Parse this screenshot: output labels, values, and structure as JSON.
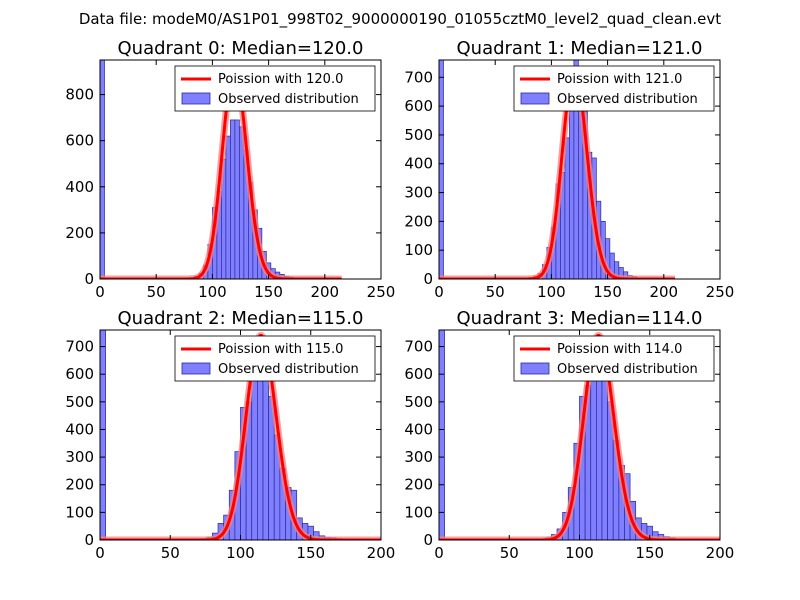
{
  "figure": {
    "suptitle": "Data file: modeM0/AS1P01_998T02_9000000190_01055cztM0_level2_quad_clean.evt",
    "colors": {
      "bars": "#7f7fff",
      "bar_edge": "#2a2a9a",
      "line": "#ff0000",
      "line_halo": "#ff8080"
    }
  },
  "chart_data": [
    {
      "type": "bar",
      "title": "Quadrant 0: Median=120.0",
      "xlim": [
        0,
        250
      ],
      "ylim": [
        0,
        950
      ],
      "xticks": [
        0,
        50,
        100,
        150,
        200,
        250
      ],
      "yticks": [
        0,
        200,
        400,
        600,
        800
      ],
      "legend": {
        "position": "top-right",
        "entries": [
          "Poission with 120.0",
          "Observed distribution"
        ]
      },
      "series": [
        {
          "name": "Observed distribution",
          "kind": "hist",
          "bin_width": 4,
          "bins": [
            [
              0,
              950
            ],
            [
              84,
              12
            ],
            [
              88,
              25
            ],
            [
              92,
              60
            ],
            [
              96,
              150
            ],
            [
              100,
              310
            ],
            [
              104,
              380
            ],
            [
              108,
              520
            ],
            [
              112,
              620
            ],
            [
              116,
              690
            ],
            [
              120,
              690
            ],
            [
              124,
              660
            ],
            [
              128,
              560
            ],
            [
              132,
              420
            ],
            [
              136,
              300
            ],
            [
              140,
              220
            ],
            [
              144,
              120
            ],
            [
              148,
              70
            ],
            [
              152,
              45
            ],
            [
              156,
              30
            ],
            [
              160,
              20
            ],
            [
              164,
              12
            ],
            [
              168,
              8
            ],
            [
              172,
              5
            ]
          ]
        },
        {
          "name": "Poission with 120.0",
          "kind": "poisson",
          "lambda": 120.0,
          "x_range": [
            0,
            215
          ],
          "peak": 910
        }
      ]
    },
    {
      "type": "bar",
      "title": "Quadrant 1: Median=121.0",
      "xlim": [
        0,
        250
      ],
      "ylim": [
        0,
        760
      ],
      "xticks": [
        0,
        50,
        100,
        150,
        200,
        250
      ],
      "yticks": [
        0,
        100,
        200,
        300,
        400,
        500,
        600,
        700
      ],
      "legend": {
        "position": "top-right",
        "entries": [
          "Poission with 121.0",
          "Observed distribution"
        ]
      },
      "series": [
        {
          "name": "Observed distribution",
          "kind": "hist",
          "bin_width": 4,
          "bins": [
            [
              0,
              760
            ],
            [
              80,
              5
            ],
            [
              84,
              10
            ],
            [
              88,
              20
            ],
            [
              92,
              50
            ],
            [
              96,
              110
            ],
            [
              100,
              180
            ],
            [
              104,
              330
            ],
            [
              108,
              370
            ],
            [
              112,
              490
            ],
            [
              116,
              700
            ],
            [
              120,
              760
            ],
            [
              124,
              690
            ],
            [
              128,
              580
            ],
            [
              132,
              440
            ],
            [
              136,
              420
            ],
            [
              140,
              270
            ],
            [
              144,
              200
            ],
            [
              148,
              140
            ],
            [
              152,
              90
            ],
            [
              156,
              60
            ],
            [
              160,
              40
            ],
            [
              164,
              25
            ],
            [
              168,
              12
            ],
            [
              172,
              8
            ]
          ]
        },
        {
          "name": "Poission with 121.0",
          "kind": "poisson",
          "lambda": 121.0,
          "x_range": [
            0,
            210
          ],
          "peak": 725
        }
      ]
    },
    {
      "type": "bar",
      "title": "Quadrant 2: Median=115.0",
      "xlim": [
        0,
        200
      ],
      "ylim": [
        0,
        760
      ],
      "xticks": [
        0,
        50,
        100,
        150,
        200
      ],
      "yticks": [
        0,
        100,
        200,
        300,
        400,
        500,
        600,
        700
      ],
      "legend": {
        "position": "top-right",
        "entries": [
          "Poission with 115.0",
          "Observed distribution"
        ]
      },
      "series": [
        {
          "name": "Observed distribution",
          "kind": "hist",
          "bin_width": 4,
          "bins": [
            [
              0,
              760
            ],
            [
              72,
              5
            ],
            [
              76,
              10
            ],
            [
              80,
              25
            ],
            [
              84,
              60
            ],
            [
              88,
              90
            ],
            [
              92,
              180
            ],
            [
              96,
              320
            ],
            [
              100,
              480
            ],
            [
              104,
              500
            ],
            [
              108,
              630
            ],
            [
              112,
              700
            ],
            [
              116,
              600
            ],
            [
              120,
              520
            ],
            [
              124,
              380
            ],
            [
              128,
              260
            ],
            [
              132,
              190
            ],
            [
              136,
              180
            ],
            [
              140,
              80
            ],
            [
              144,
              60
            ],
            [
              148,
              50
            ],
            [
              152,
              30
            ],
            [
              156,
              15
            ],
            [
              160,
              10
            ],
            [
              164,
              8
            ],
            [
              168,
              5
            ]
          ]
        },
        {
          "name": "Poission with 115.0",
          "kind": "poisson",
          "lambda": 115.0,
          "x_range": [
            0,
            200
          ],
          "peak": 740
        }
      ]
    },
    {
      "type": "bar",
      "title": "Quadrant 3: Median=114.0",
      "xlim": [
        0,
        200
      ],
      "ylim": [
        0,
        760
      ],
      "xticks": [
        0,
        50,
        100,
        150,
        200
      ],
      "yticks": [
        0,
        100,
        200,
        300,
        400,
        500,
        600,
        700
      ],
      "legend": {
        "position": "top-right",
        "entries": [
          "Poission with 114.0",
          "Observed distribution"
        ]
      },
      "series": [
        {
          "name": "Observed distribution",
          "kind": "hist",
          "bin_width": 4,
          "bins": [
            [
              0,
              760
            ],
            [
              76,
              8
            ],
            [
              80,
              20
            ],
            [
              84,
              40
            ],
            [
              88,
              100
            ],
            [
              92,
              190
            ],
            [
              96,
              350
            ],
            [
              100,
              520
            ],
            [
              104,
              560
            ],
            [
              108,
              680
            ],
            [
              112,
              740
            ],
            [
              116,
              620
            ],
            [
              120,
              500
            ],
            [
              124,
              360
            ],
            [
              128,
              270
            ],
            [
              132,
              240
            ],
            [
              136,
              140
            ],
            [
              140,
              80
            ],
            [
              144,
              60
            ],
            [
              148,
              50
            ],
            [
              152,
              30
            ],
            [
              156,
              20
            ],
            [
              160,
              12
            ],
            [
              164,
              8
            ]
          ]
        },
        {
          "name": "Poission with 114.0",
          "kind": "poisson",
          "lambda": 114.0,
          "x_range": [
            0,
            200
          ],
          "peak": 740
        }
      ]
    }
  ]
}
